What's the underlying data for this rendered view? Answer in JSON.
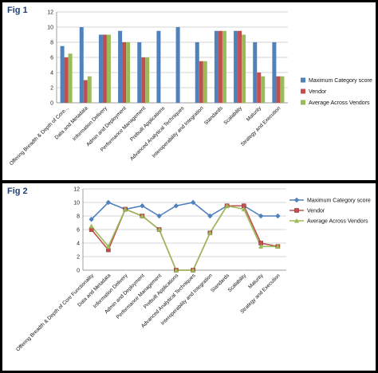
{
  "figures": [
    {
      "label": "Fig 1"
    },
    {
      "label": "Fig 2"
    }
  ],
  "colors": {
    "max": "#4f81bd",
    "vendor": "#c0504d",
    "avg": "#9bbb59"
  },
  "chart_data": [
    {
      "type": "bar",
      "categories": [
        "Offering Breadth & Depth of Core...",
        "Data and Metadata",
        "Information Delivery",
        "Admin and Deployment",
        "Performance Management",
        "Prebuilt Applications",
        "Advanced Analytical Techniques",
        "Interoperability and Integration",
        "Standards",
        "Scalability",
        "Maturity",
        "Strategy and Execution"
      ],
      "series": [
        {
          "name": "Maximum Category score",
          "values": [
            7.5,
            10,
            9,
            9.5,
            8,
            9.5,
            10,
            8,
            9.5,
            9.5,
            8,
            8
          ]
        },
        {
          "name": "Vendor",
          "values": [
            6,
            3,
            9,
            8,
            6,
            0,
            0,
            5.5,
            9.5,
            9.5,
            4,
            3.5
          ]
        },
        {
          "name": "Average Across Vendors",
          "values": [
            6.5,
            3.5,
            9,
            8,
            6,
            0,
            0,
            5.5,
            9.5,
            9,
            3.5,
            3.5
          ]
        }
      ],
      "yticks": [
        "0",
        "2",
        "4",
        "6",
        "8",
        "10",
        "12"
      ],
      "ylim": [
        0,
        12
      ],
      "grid": true,
      "legend": "right"
    },
    {
      "type": "line",
      "categories": [
        "Offering Breadth & Depth of Core Functionality",
        "Data and Metadata",
        "Information Delivery",
        "Admin and Deployment",
        "Performance Management",
        "Prebuilt Applications",
        "Advanced Analytical Techniques",
        "Interoperability and Integration",
        "Standards",
        "Scalability",
        "Maturity",
        "Strategy and Execution"
      ],
      "series": [
        {
          "name": "Maximum Category score",
          "marker": "diamond",
          "values": [
            7.5,
            10,
            9,
            9.5,
            8,
            9.5,
            10,
            8,
            9.5,
            9.5,
            8,
            8
          ]
        },
        {
          "name": "Vendor",
          "marker": "square",
          "values": [
            6,
            3,
            9,
            8,
            6,
            0,
            0,
            5.5,
            9.5,
            9.5,
            4,
            3.5
          ]
        },
        {
          "name": "Average Across Vendors",
          "marker": "triangle",
          "values": [
            6.5,
            3.5,
            9,
            8,
            6,
            0,
            0,
            5.5,
            9.5,
            9,
            3.5,
            3.5
          ]
        }
      ],
      "yticks": [
        "0",
        "2",
        "4",
        "6",
        "8",
        "10",
        "12"
      ],
      "ylim": [
        0,
        12
      ],
      "grid": true,
      "legend": "right"
    }
  ]
}
